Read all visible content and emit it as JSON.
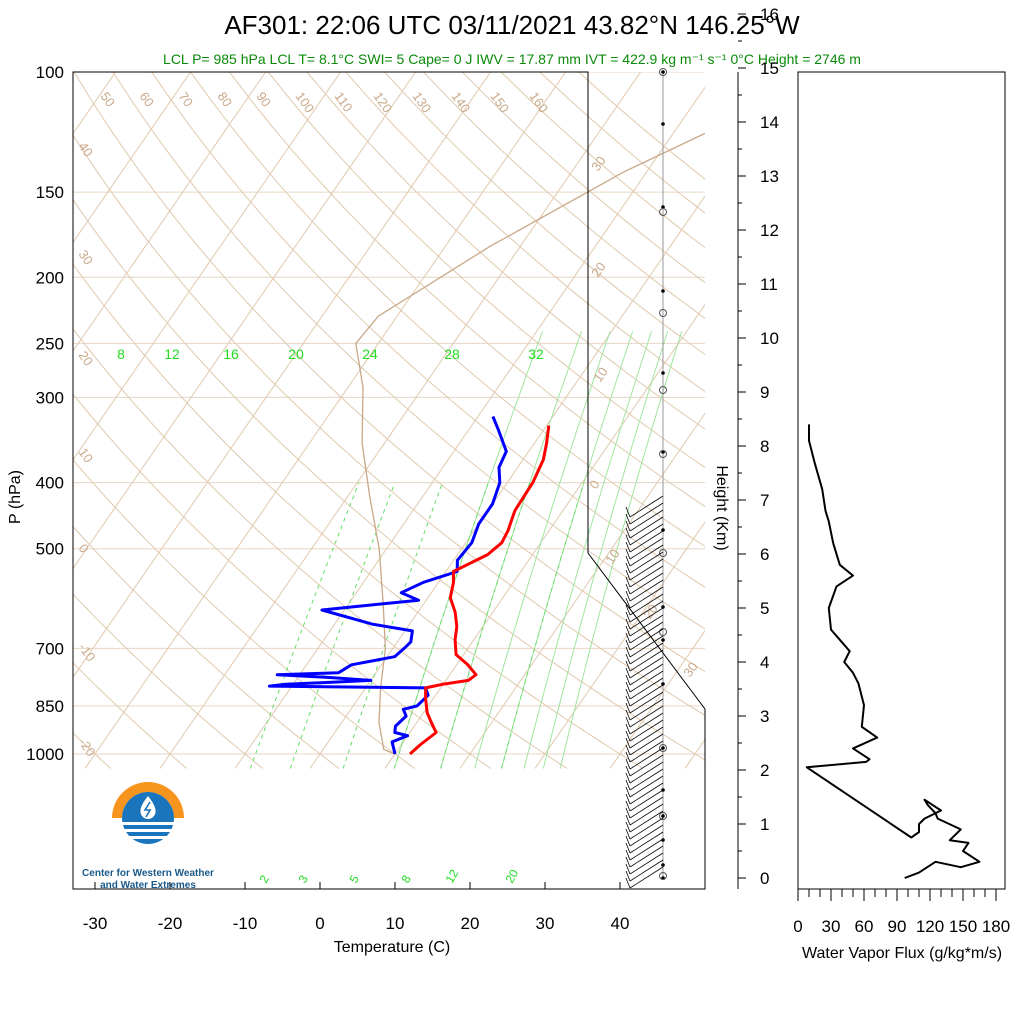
{
  "chart_data": [
    {
      "type": "line",
      "title": "AF301: 22:06 UTC 03/11/2021  43.82°N 146.25°W",
      "subtitle": "LCL P= 985 hPa  LCL T= 8.1°C  SWI= 5  Cape= 0 J  IWV = 17.87 mm  IVT = 422.9 kg m⁻¹ s⁻¹  0°C Height = 2746 m",
      "xlabel": "Temperature (C)",
      "ylabel": "P (hPa)",
      "xlim": [
        -35,
        50
      ],
      "ylim": [
        1050,
        100
      ],
      "yscale": "log",
      "x_ticks": [
        "-30",
        "-20",
        "-10",
        "0",
        "10",
        "20",
        "30",
        "40"
      ],
      "y_ticks": [
        "100",
        "150",
        "200",
        "250",
        "300",
        "400",
        "500",
        "700",
        "850",
        "1000"
      ],
      "mixing_ratio_labels": [
        "8",
        "12",
        "16",
        "20",
        "24",
        "28",
        "32"
      ],
      "mixing_ratio_labels_dashed": [
        "2",
        "3",
        "5",
        "8",
        "12",
        "20"
      ],
      "dry_adiabat_labels": [
        "50",
        "60",
        "70",
        "80",
        "90",
        "100",
        "110",
        "120",
        "130",
        "140",
        "150",
        "160"
      ],
      "isotherm_labels": [
        "40",
        "30",
        "20",
        "10",
        "0",
        "-10",
        "-20"
      ],
      "skewed_isotherm_labels": [
        "30",
        "20",
        "10",
        "0",
        "10",
        "20",
        "30"
      ],
      "series": [
        {
          "name": "Temperature",
          "color": "#ff0000",
          "points": [
            [
              12,
              1000
            ],
            [
              12.5,
              970
            ],
            [
              13.5,
              930
            ],
            [
              12,
              900
            ],
            [
              10.5,
              870
            ],
            [
              9,
              830
            ],
            [
              8,
              800
            ],
            [
              10,
              790
            ],
            [
              13,
              780
            ],
            [
              13.5,
              765
            ],
            [
              11.5,
              740
            ],
            [
              9,
              715
            ],
            [
              7.5,
              680
            ],
            [
              6.5,
              650
            ],
            [
              5,
              620
            ],
            [
              3,
              590
            ],
            [
              2,
              560
            ],
            [
              1,
              540
            ],
            [
              4,
              510
            ],
            [
              4.8,
              490
            ],
            [
              4.5,
              470
            ],
            [
              3.6,
              440
            ],
            [
              3.4,
              400
            ],
            [
              2.7,
              370
            ],
            [
              1.6,
              350
            ],
            [
              0.3,
              330
            ]
          ]
        },
        {
          "name": "Dewpoint",
          "color": "#0000ff",
          "points": [
            [
              10,
              1000
            ],
            [
              8.5,
              960
            ],
            [
              10,
              940
            ],
            [
              8,
              930
            ],
            [
              7.5,
              910
            ],
            [
              8,
              880
            ],
            [
              7,
              860
            ],
            [
              8.5,
              850
            ],
            [
              9,
              820
            ],
            [
              8,
              800
            ],
            [
              -13,
              795
            ],
            [
              -11,
              790
            ],
            [
              -5,
              785
            ],
            [
              0,
              780
            ],
            [
              -6,
              772
            ],
            [
              -13,
              765
            ],
            [
              -5,
              760
            ],
            [
              -4,
              740
            ],
            [
              1,
              720
            ],
            [
              1.5,
              700
            ],
            [
              1.8,
              685
            ],
            [
              1,
              660
            ],
            [
              -5,
              645
            ],
            [
              -13,
              615
            ],
            [
              -1,
              595
            ],
            [
              -4,
              580
            ],
            [
              -2,
              560
            ],
            [
              1.5,
              540
            ],
            [
              0.5,
              520
            ],
            [
              0.8,
              490
            ],
            [
              0,
              460
            ],
            [
              0,
              430
            ],
            [
              -1,
              400
            ],
            [
              -2.5,
              380
            ],
            [
              -3,
              360
            ],
            [
              -6,
              335
            ],
            [
              -8,
              320
            ]
          ]
        },
        {
          "name": "Parcel",
          "color": "#c8a888",
          "points": [
            [
              10,
              1000
            ],
            [
              8.1,
              985
            ],
            [
              5,
              900
            ],
            [
              2,
              800
            ],
            [
              -1,
              700
            ],
            [
              -5.5,
              600
            ],
            [
              -11,
              500
            ],
            [
              -17,
              420
            ],
            [
              -23,
              350
            ],
            [
              -28,
              290
            ],
            [
              -33,
              250
            ],
            [
              -32.5,
              228
            ],
            [
              -24,
              180
            ],
            [
              -13,
              140
            ],
            [
              -2,
              115
            ],
            [
              5,
              100
            ]
          ]
        }
      ]
    },
    {
      "type": "line",
      "xlabel": "Water Vapor Flux (g/kg*m/s)",
      "ylabel": "Height (Km)",
      "xlim": [
        0,
        180
      ],
      "ylim": [
        -0.3,
        16.5
      ],
      "x_ticks": [
        "0",
        "30",
        "60",
        "90",
        "120",
        "150",
        "180"
      ],
      "y_ticks": [
        "0",
        "1",
        "2",
        "3",
        "4",
        "5",
        "6",
        "7",
        "8",
        "9",
        "10",
        "11",
        "12",
        "13",
        "14",
        "15",
        "16"
      ],
      "series": [
        {
          "name": "Water Vapor Flux",
          "color": "#000000",
          "x": [
            97,
            110,
            125,
            148,
            165,
            150,
            155,
            138,
            148,
            127,
            125,
            118,
            115,
            130,
            115,
            110,
            110,
            103,
            8,
            62,
            65,
            50,
            72,
            58,
            60,
            55,
            50,
            42,
            47,
            30,
            28,
            35,
            50,
            38,
            32,
            28,
            25,
            22,
            15,
            10,
            10
          ],
          "y": [
            0,
            0.1,
            0.3,
            0.2,
            0.3,
            0.5,
            0.65,
            0.7,
            0.9,
            1.1,
            1.2,
            1.35,
            1.45,
            1.25,
            1.1,
            1.0,
            0.85,
            0.75,
            2.05,
            2.15,
            2.2,
            2.4,
            2.6,
            2.8,
            3.2,
            3.6,
            3.8,
            4.0,
            4.2,
            4.6,
            5.0,
            5.4,
            5.6,
            5.8,
            6.2,
            6.6,
            6.8,
            7.2,
            7.7,
            8.1,
            8.4
          ]
        }
      ]
    }
  ],
  "logo": {
    "line1": "Center for Western Weather",
    "line2": "and Water Extremes",
    "orange": "#f7941d",
    "blue": "#1b75bc"
  }
}
